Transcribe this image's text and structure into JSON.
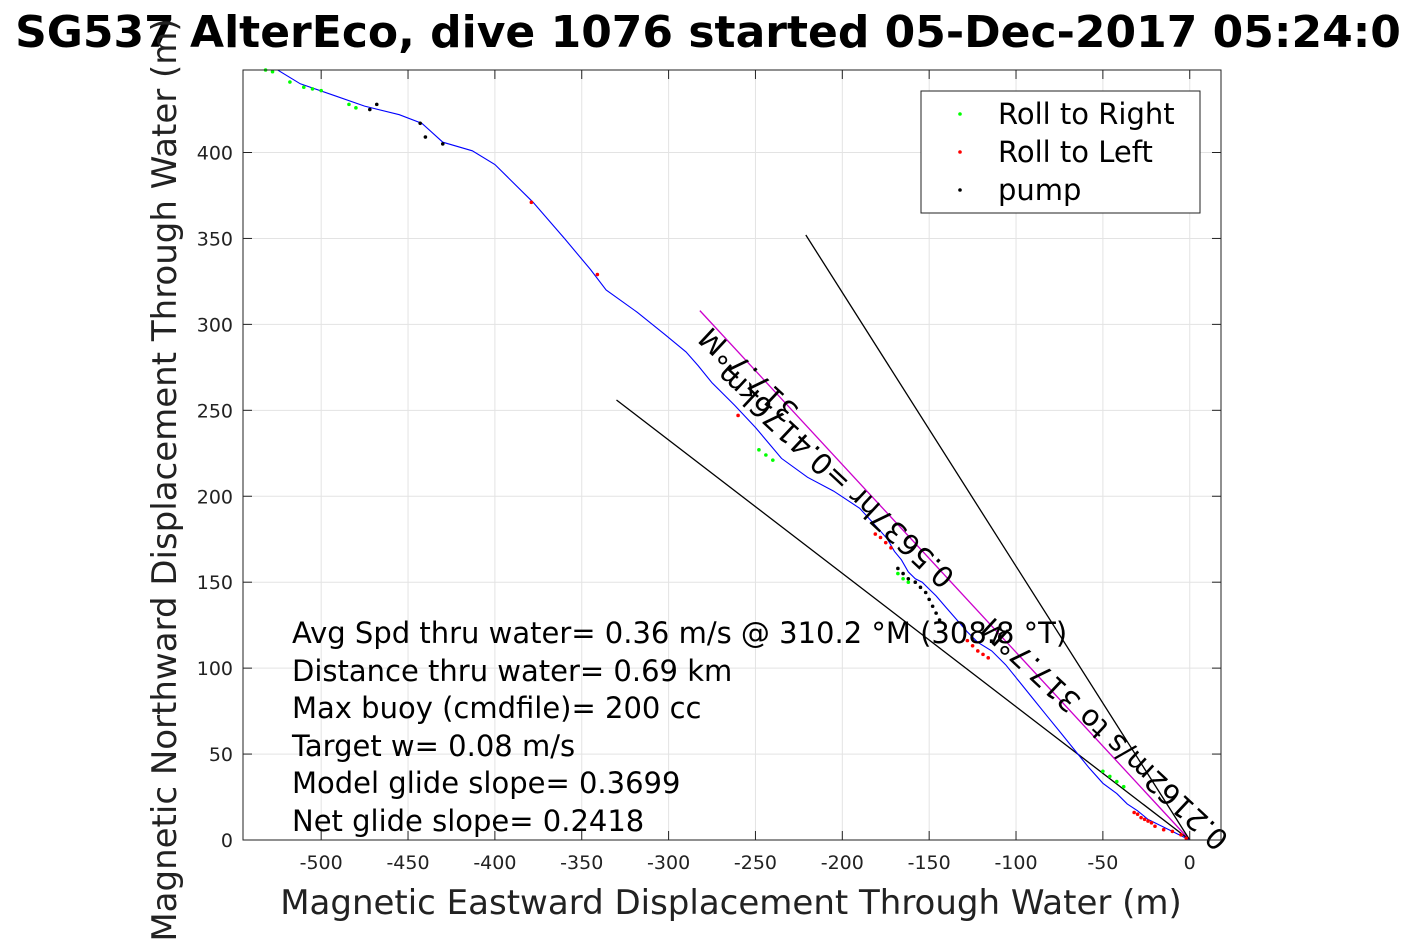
{
  "chart_data": {
    "type": "line",
    "title": "SG537 AlterEco, dive 1076 started 05-Dec-2017 05:24:0",
    "xlabel": "Magnetic Eastward Displacement Through Water (m)",
    "ylabel": "Magnetic Northward Displacement Through Water (m)",
    "xlim": [
      -545,
      18
    ],
    "ylim": [
      0,
      448
    ],
    "xticks": [
      -500,
      -450,
      -400,
      -350,
      -300,
      -250,
      -200,
      -150,
      -100,
      -50,
      0
    ],
    "yticks": [
      0,
      50,
      100,
      150,
      200,
      250,
      300,
      350,
      400
    ],
    "grid": true,
    "legend_position": "top-right",
    "legend": [
      {
        "name": "Roll to Right",
        "color": "#00ff00"
      },
      {
        "name": "Roll to Left",
        "color": "#ff0000"
      },
      {
        "name": "pump",
        "color": "#000000"
      }
    ],
    "track": {
      "color": "#0000ff",
      "x": [
        0,
        -8,
        -16,
        -24,
        -30,
        -36,
        -42,
        -50,
        -58,
        -66,
        -74,
        -82,
        -90,
        -98,
        -106,
        -114,
        -122,
        -128,
        -134,
        -140,
        -146,
        -150,
        -154,
        -158,
        -162,
        -166,
        -170,
        -174,
        -180,
        -190,
        -205,
        -220,
        -235,
        -250,
        -262,
        -275,
        -283,
        -290,
        -302,
        -318,
        -336,
        -345,
        -360,
        -378,
        -400,
        -413,
        -430,
        -442,
        -455,
        -475,
        -492,
        -512,
        -525,
        -533
      ],
      "y": [
        0,
        4,
        8,
        12,
        17,
        21,
        27,
        33,
        42,
        52,
        62,
        72,
        82,
        92,
        102,
        110,
        115,
        121,
        128,
        135,
        142,
        146,
        150,
        152,
        156,
        163,
        168,
        175,
        182,
        193,
        203,
        211,
        222,
        240,
        253,
        266,
        276,
        284,
        294,
        307,
        320,
        332,
        350,
        371,
        393,
        401,
        406,
        417,
        422,
        427,
        433,
        440,
        448,
        448
      ]
    },
    "roll_right": {
      "x": [
        -532,
        -528,
        -518,
        -510,
        -505,
        -500,
        -484,
        -480,
        -248,
        -244,
        -240,
        -168,
        -165,
        -162,
        -50,
        -46,
        -42,
        -38
      ],
      "y": [
        448,
        447,
        441,
        438,
        437,
        436,
        428,
        426,
        227,
        224,
        221,
        155,
        152,
        150,
        40,
        37,
        34,
        31
      ]
    },
    "roll_left": {
      "x": [
        -379,
        -341,
        -260,
        -181,
        -178,
        -175,
        -172,
        -128,
        -125,
        -122,
        -119,
        -116,
        -32,
        -30,
        -28,
        -26,
        -24,
        -22,
        -20,
        -15,
        -10,
        -5,
        -2
      ],
      "y": [
        371,
        329,
        247,
        178,
        176,
        173,
        170,
        116,
        113,
        110,
        108,
        106,
        16,
        15,
        13,
        12,
        11,
        10,
        8,
        6,
        5,
        3,
        1
      ]
    },
    "pump": {
      "x": [
        -472,
        -468,
        -443,
        -440,
        -430,
        -168,
        -165,
        -162,
        -158,
        -155,
        -152,
        -150,
        -148,
        -146,
        -144
      ],
      "y": [
        425,
        428,
        417,
        409,
        405,
        158,
        155,
        152,
        150,
        147,
        144,
        140,
        136,
        132,
        128
      ]
    },
    "lines": [
      {
        "name": "heading-line",
        "color": "#cc00cc",
        "x": [
          0,
          -282
        ],
        "y": [
          0,
          308
        ]
      },
      {
        "name": "current-line",
        "color": "#000000",
        "x": [
          0,
          -221
        ],
        "y": [
          0,
          352
        ]
      },
      {
        "name": "current-line-2",
        "color": "#000000",
        "x": [
          0,
          -330
        ],
        "y": [
          0,
          256
        ]
      }
    ],
    "rotated_labels": [
      {
        "name": "current-label",
        "text": "0.2162m/s to 317.7°M",
        "x": -45,
        "y": 66,
        "angle_deg": -43
      },
      {
        "name": "track-label",
        "text": "0.5637hr =0.4176km",
        "x": -200,
        "y": 216,
        "angle_deg": -43
      },
      {
        "name": "heading-label",
        "text": "317.7°M",
        "x": -250,
        "y": 275,
        "angle_deg": -43
      }
    ],
    "annotations": [
      "Avg Spd thru water=  0.36 m/s @ 310.2 °M (308.8 °T)",
      "Distance thru water=  0.69 km",
      "Max buoy (cmdfile)= 200 cc",
      "Target w= 0.08 m/s",
      "Model glide slope= 0.3699",
      "Net glide slope= 0.2418"
    ]
  }
}
